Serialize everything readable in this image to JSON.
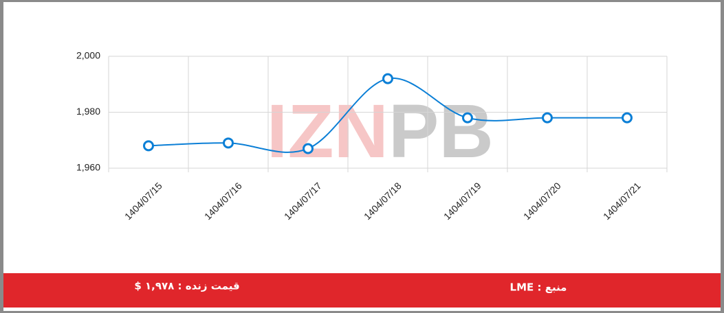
{
  "chart_data": {
    "type": "line",
    "categories": [
      "1404/07/15",
      "1404/07/16",
      "1404/07/17",
      "1404/07/18",
      "1404/07/19",
      "1404/07/20",
      "1404/07/21"
    ],
    "series": [
      {
        "color": "#0b7fd6",
        "values": [
          1968,
          1969,
          1967,
          1992,
          1978,
          1978,
          1978
        ]
      }
    ],
    "ylim": [
      1960,
      2000
    ],
    "yticks": [
      {
        "value": 1960,
        "label": "1,960"
      },
      {
        "value": 1980,
        "label": "1,980"
      },
      {
        "value": 2000,
        "label": "2,000"
      }
    ],
    "grid": true
  },
  "watermark": [
    "IZN",
    "PB"
  ],
  "footer": {
    "price": "قیمت زنده : ۱,۹۷۸ $",
    "source": "منبع : LME"
  }
}
